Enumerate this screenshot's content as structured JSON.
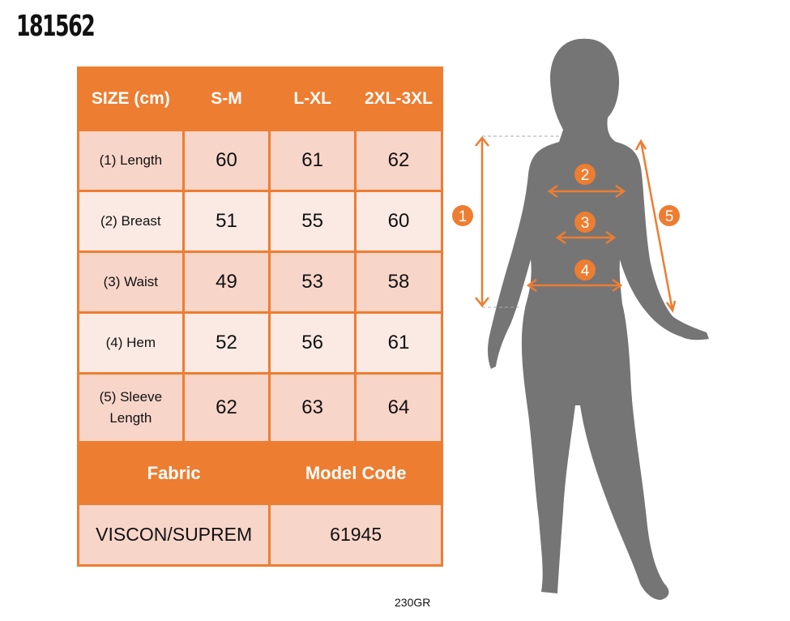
{
  "product_code": "181562",
  "table": {
    "headers": [
      "SIZE (cm)",
      "S-M",
      "L-XL",
      "2XL-3XL"
    ],
    "rows": [
      {
        "label": "(1) Length",
        "values": [
          "60",
          "61",
          "62"
        ]
      },
      {
        "label": "(2) Breast",
        "values": [
          "51",
          "55",
          "60"
        ]
      },
      {
        "label": "(3) Waist",
        "values": [
          "49",
          "53",
          "58"
        ]
      },
      {
        "label": "(4) Hem",
        "values": [
          "52",
          "56",
          "61"
        ]
      },
      {
        "label": "(5) Sleeve Length",
        "values": [
          "62",
          "63",
          "64"
        ]
      }
    ],
    "fabric_label": "Fabric",
    "model_code_label": "Model Code",
    "fabric_value": "VISCON/SUPREM",
    "model_code_value": "61945"
  },
  "weight": "230GR",
  "figure": {
    "markers": [
      "1",
      "2",
      "3",
      "4",
      "5"
    ]
  },
  "colors": {
    "accent": "#ED7D31",
    "row_dark": "#F8D5C9",
    "row_light": "#FBEAE3",
    "silhouette": "#757575"
  }
}
